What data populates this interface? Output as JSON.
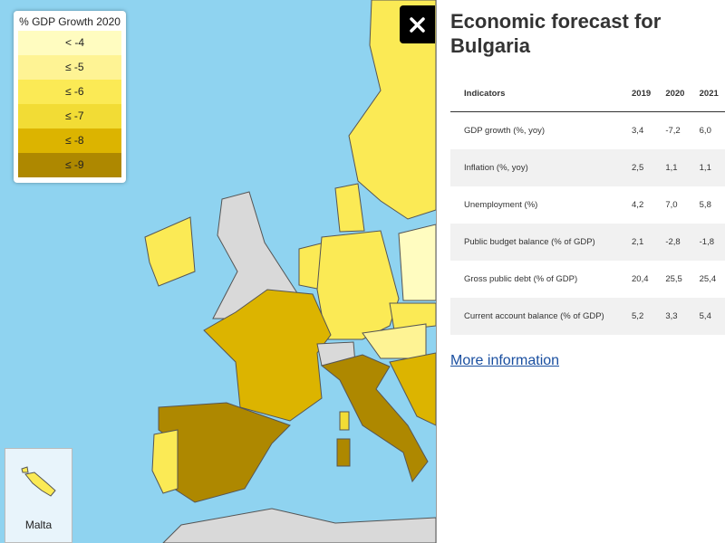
{
  "legend": {
    "title": "% GDP Growth 2020",
    "items": [
      {
        "label": "< -4",
        "color": "#fffcc0"
      },
      {
        "label": "≤ -5",
        "color": "#fef394"
      },
      {
        "label": "≤ -6",
        "color": "#fbea55"
      },
      {
        "label": "≤ -7",
        "color": "#f2dc35"
      },
      {
        "label": "≤ -8",
        "color": "#dcb400"
      },
      {
        "label": "≤ -9",
        "color": "#ae8800"
      }
    ]
  },
  "inset": {
    "label": "Malta"
  },
  "panel": {
    "title": "Economic forecast for Bulgaria",
    "table": {
      "header": [
        "Indicators",
        "2019",
        "2020",
        "2021"
      ],
      "rows": [
        [
          "GDP growth (%, yoy)",
          "3,4",
          "-7,2",
          "6,0"
        ],
        [
          "Inflation (%, yoy)",
          "2,5",
          "1,1",
          "1,1"
        ],
        [
          "Unemployment (%)",
          "4,2",
          "7,0",
          "5,8"
        ],
        [
          "Public budget balance (% of GDP)",
          "2,1",
          "-2,8",
          "-1,8"
        ],
        [
          "Gross public debt (% of GDP)",
          "20,4",
          "25,5",
          "25,4"
        ],
        [
          "Current account balance (% of GDP)",
          "5,2",
          "3,3",
          "5,4"
        ]
      ]
    },
    "link": "More information"
  }
}
